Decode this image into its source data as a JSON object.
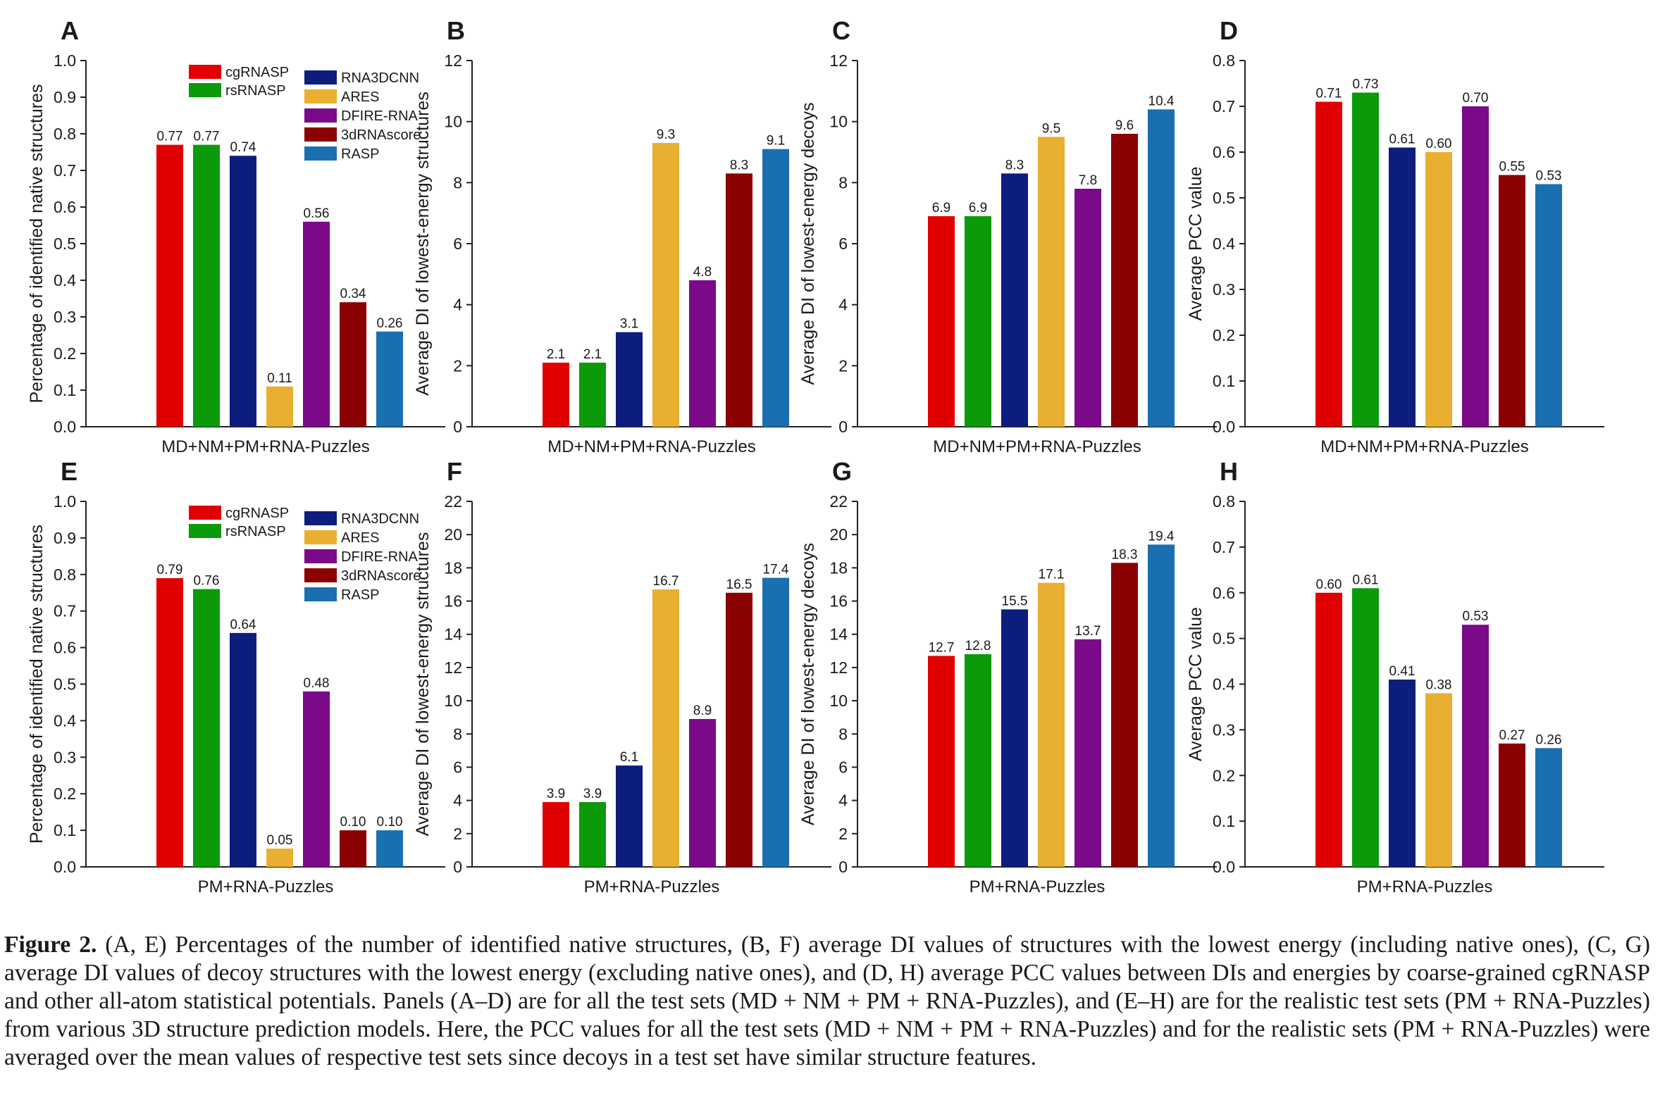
{
  "figure": {
    "series_names": [
      "cgRNASP",
      "rsRNASP",
      "RNA3DCNN",
      "ARES",
      "DFIRE-RNA",
      "3dRNAscore",
      "RASP"
    ],
    "series_colors": [
      "#e00000",
      "#0a9a0a",
      "#0c1d7e",
      "#e9af30",
      "#7a0a8a",
      "#8b0000",
      "#1a6fb0"
    ],
    "caption": {
      "label": "Figure 2.",
      "text": "(A, E) Percentages of the number of identified native structures, (B, F) average DI values of structures with the lowest energy (including native ones), (C, G) average DI values of decoy structures with the lowest energy (excluding native ones), and (D, H) average PCC values between DIs and energies by coarse-grained cgRNASP and other all-atom statistical potentials. Panels (A–D) are for all the test sets (MD + NM + PM + RNA-Puzzles), and (E–H) are for the realistic test sets (PM + RNA-Puzzles) from various 3D structure prediction models. Here, the PCC values for all the test sets (MD + NM + PM + RNA-Puzzles) and for the realistic sets (PM + RNA-Puzzles) were averaged over the mean values of respective test sets since decoys in a test set have similar structure features."
    }
  },
  "chart_data": [
    {
      "panel": "A",
      "type": "bar",
      "xlabel": "MD+NM+PM+RNA-Puzzles",
      "ylabel": "Percentage of identified native structures",
      "categories": [
        "cgRNASP",
        "rsRNASP",
        "RNA3DCNN",
        "ARES",
        "DFIRE-RNA",
        "3dRNAscore",
        "RASP"
      ],
      "values": [
        0.77,
        0.77,
        0.74,
        0.11,
        0.56,
        0.34,
        0.26
      ],
      "labels": [
        "0.77",
        "0.77",
        "0.74",
        "0.11",
        "0.56",
        "0.34",
        "0.26"
      ],
      "ylim": [
        0,
        1.0
      ],
      "ticks": [
        "0.0",
        "0.1",
        "0.2",
        "0.3",
        "0.4",
        "0.5",
        "0.6",
        "0.7",
        "0.8",
        "0.9",
        "1.0"
      ],
      "legend": "top-left"
    },
    {
      "panel": "B",
      "type": "bar",
      "xlabel": "MD+NM+PM+RNA-Puzzles",
      "ylabel": "Average DI of  lowest-energy structures",
      "categories": [
        "cgRNASP",
        "rsRNASP",
        "RNA3DCNN",
        "ARES",
        "DFIRE-RNA",
        "3dRNAscore",
        "RASP"
      ],
      "values": [
        2.1,
        2.1,
        3.1,
        9.3,
        4.8,
        8.3,
        9.1
      ],
      "labels": [
        "2.1",
        "2.1",
        "3.1",
        "9.3",
        "4.8",
        "8.3",
        "9.1"
      ],
      "ylim": [
        0,
        12
      ],
      "ticks": [
        "0",
        "2",
        "4",
        "6",
        "8",
        "10",
        "12"
      ]
    },
    {
      "panel": "C",
      "type": "bar",
      "xlabel": "MD+NM+PM+RNA-Puzzles",
      "ylabel": "Average DI of lowest-energy decoys",
      "categories": [
        "cgRNASP",
        "rsRNASP",
        "RNA3DCNN",
        "ARES",
        "DFIRE-RNA",
        "3dRNAscore",
        "RASP"
      ],
      "values": [
        6.9,
        6.9,
        8.3,
        9.5,
        7.8,
        9.6,
        10.4
      ],
      "labels": [
        "6.9",
        "6.9",
        "8.3",
        "9.5",
        "7.8",
        "9.6",
        "10.4"
      ],
      "ylim": [
        0,
        12
      ],
      "ticks": [
        "0",
        "2",
        "4",
        "6",
        "8",
        "10",
        "12"
      ]
    },
    {
      "panel": "D",
      "type": "bar",
      "xlabel": "MD+NM+PM+RNA-Puzzles",
      "ylabel": "Average PCC value",
      "categories": [
        "cgRNASP",
        "rsRNASP",
        "RNA3DCNN",
        "ARES",
        "DFIRE-RNA",
        "3dRNAscore",
        "RASP"
      ],
      "values": [
        0.71,
        0.73,
        0.61,
        0.6,
        0.7,
        0.55,
        0.53
      ],
      "labels": [
        "0.71",
        "0.73",
        "0.61",
        "0.60",
        "0.70",
        "0.55",
        "0.53"
      ],
      "ylim": [
        0,
        0.8
      ],
      "ticks": [
        "0.0",
        "0.1",
        "0.2",
        "0.3",
        "0.4",
        "0.5",
        "0.6",
        "0.7",
        "0.8"
      ]
    },
    {
      "panel": "E",
      "type": "bar",
      "xlabel": "PM+RNA-Puzzles",
      "ylabel": "Percentage of identified native structures",
      "categories": [
        "cgRNASP",
        "rsRNASP",
        "RNA3DCNN",
        "ARES",
        "DFIRE-RNA",
        "3dRNAscore",
        "RASP"
      ],
      "values": [
        0.79,
        0.76,
        0.64,
        0.05,
        0.48,
        0.1,
        0.1
      ],
      "labels": [
        "0.79",
        "0.76",
        "0.64",
        "0.05",
        "0.48",
        "0.10",
        "0.10"
      ],
      "ylim": [
        0,
        1.0
      ],
      "ticks": [
        "0.0",
        "0.1",
        "0.2",
        "0.3",
        "0.4",
        "0.5",
        "0.6",
        "0.7",
        "0.8",
        "0.9",
        "1.0"
      ],
      "legend": "top-left"
    },
    {
      "panel": "F",
      "type": "bar",
      "xlabel": "PM+RNA-Puzzles",
      "ylabel": "Average DI of  lowest-energy structures",
      "categories": [
        "cgRNASP",
        "rsRNASP",
        "RNA3DCNN",
        "ARES",
        "DFIRE-RNA",
        "3dRNAscore",
        "RASP"
      ],
      "values": [
        3.9,
        3.9,
        6.1,
        16.7,
        8.9,
        16.5,
        17.4
      ],
      "labels": [
        "3.9",
        "3.9",
        "6.1",
        "16.7",
        "8.9",
        "16.5",
        "17.4"
      ],
      "ylim": [
        0,
        22
      ],
      "ticks": [
        "0",
        "2",
        "4",
        "6",
        "8",
        "10",
        "12",
        "14",
        "16",
        "18",
        "20",
        "22"
      ]
    },
    {
      "panel": "G",
      "type": "bar",
      "xlabel": "PM+RNA-Puzzles",
      "ylabel": "Average DI of lowest-energy decoys",
      "categories": [
        "cgRNASP",
        "rsRNASP",
        "RNA3DCNN",
        "ARES",
        "DFIRE-RNA",
        "3dRNAscore",
        "RASP"
      ],
      "values": [
        12.7,
        12.8,
        15.5,
        17.1,
        13.7,
        18.3,
        19.4
      ],
      "labels": [
        "12.7",
        "12.8",
        "15.5",
        "17.1",
        "13.7",
        "18.3",
        "19.4"
      ],
      "ylim": [
        0,
        22
      ],
      "ticks": [
        "0",
        "2",
        "4",
        "6",
        "8",
        "10",
        "12",
        "14",
        "16",
        "18",
        "20",
        "22"
      ]
    },
    {
      "panel": "H",
      "type": "bar",
      "xlabel": "PM+RNA-Puzzles",
      "ylabel": "Average PCC value",
      "categories": [
        "cgRNASP",
        "rsRNASP",
        "RNA3DCNN",
        "ARES",
        "DFIRE-RNA",
        "3dRNAscore",
        "RASP"
      ],
      "values": [
        0.6,
        0.61,
        0.41,
        0.38,
        0.53,
        0.27,
        0.26
      ],
      "labels": [
        "0.60",
        "0.61",
        "0.41",
        "0.38",
        "0.53",
        "0.27",
        "0.26"
      ],
      "ylim": [
        0,
        0.8
      ],
      "ticks": [
        "0.0",
        "0.1",
        "0.2",
        "0.3",
        "0.4",
        "0.5",
        "0.6",
        "0.7",
        "0.8"
      ]
    }
  ]
}
